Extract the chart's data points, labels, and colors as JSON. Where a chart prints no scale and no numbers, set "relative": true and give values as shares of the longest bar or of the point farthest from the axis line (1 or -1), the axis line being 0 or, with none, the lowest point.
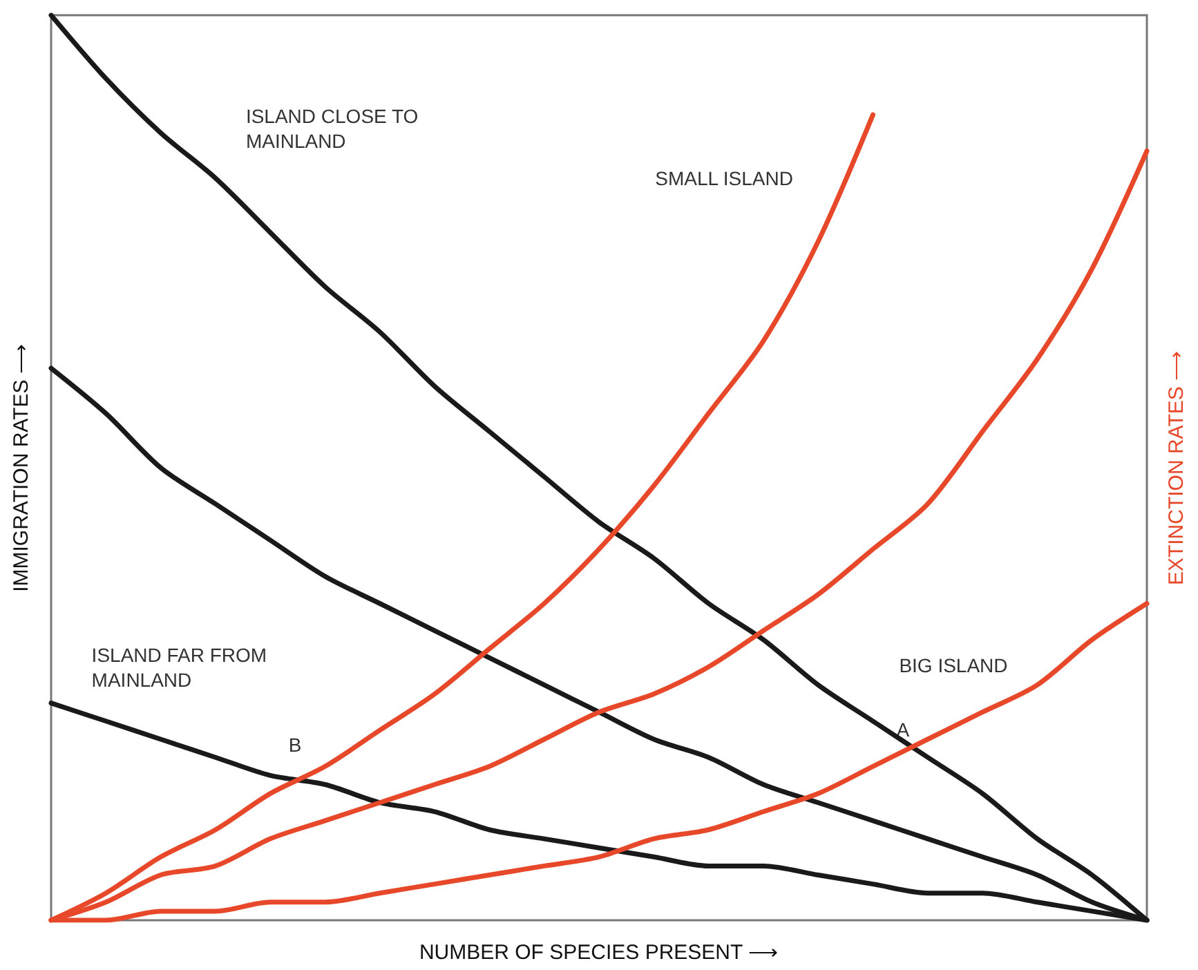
{
  "chart_data": {
    "type": "line",
    "relative": true,
    "xlabel": "NUMBER OF SPECIES PRESENT ⟶",
    "ylabel": "IMMIGRATION RATES ⟶",
    "y2label": "EXTINCTION RATES ⟶",
    "categories": [
      null,
      null,
      null,
      null,
      null,
      null,
      null,
      null,
      null,
      null,
      null,
      null,
      null,
      null,
      null,
      null,
      null,
      null,
      null,
      null,
      null
    ],
    "series": [
      {
        "name": "ISLAND CLOSE TO MAINLAND",
        "color": "#1a1a1a",
        "values": [
          1,
          0.93,
          0.87,
          0.82,
          0.76,
          0.7,
          0.65,
          0.59,
          0.54,
          0.49,
          0.44,
          0.4,
          0.35,
          0.31,
          0.26,
          0.22,
          0.18,
          0.14,
          0.09,
          0.05,
          0
        ]
      },
      {
        "color": "#1a1a1a",
        "values": [
          0.61,
          0.56,
          0.5,
          0.46,
          0.42,
          0.38,
          0.35,
          0.32,
          0.29,
          0.26,
          0.23,
          0.2,
          0.18,
          0.15,
          0.13,
          0.11,
          0.09,
          0.07,
          0.05,
          0.02,
          0
        ]
      },
      {
        "name": "ISLAND FAR FROM MAINLAND",
        "color": "#1a1a1a",
        "values": [
          0.24,
          0.22,
          0.2,
          0.18,
          0.16,
          0.15,
          0.13,
          0.12,
          0.1,
          0.09,
          0.08,
          0.07,
          0.06,
          0.06,
          0.05,
          0.04,
          0.03,
          0.03,
          0.02,
          0.01,
          0
        ]
      },
      {
        "name": "SMALL ISLAND",
        "color": "#e8482a",
        "values": [
          0,
          0.03,
          0.07,
          0.1,
          0.14,
          0.17,
          0.21,
          0.25,
          0.3,
          0.35,
          0.41,
          0.48,
          0.56,
          0.64,
          0.75,
          0.89,
          null,
          null,
          null,
          null,
          null
        ]
      },
      {
        "color": "#e8482a",
        "values": [
          0,
          0.02,
          0.05,
          0.06,
          0.09,
          0.11,
          0.13,
          0.15,
          0.17,
          0.2,
          0.23,
          0.25,
          0.28,
          0.32,
          0.36,
          0.41,
          0.46,
          0.54,
          0.62,
          0.72,
          0.85
        ]
      },
      {
        "name": "BIG ISLAND",
        "color": "#e8482a",
        "values": [
          0,
          0,
          0.01,
          0.01,
          0.02,
          0.02,
          0.03,
          0.04,
          0.05,
          0.06,
          0.07,
          0.09,
          0.1,
          0.12,
          0.14,
          0.17,
          0.2,
          0.23,
          0.26,
          0.31,
          0.35
        ]
      }
    ],
    "annotations": [
      "A",
      "B"
    ]
  }
}
